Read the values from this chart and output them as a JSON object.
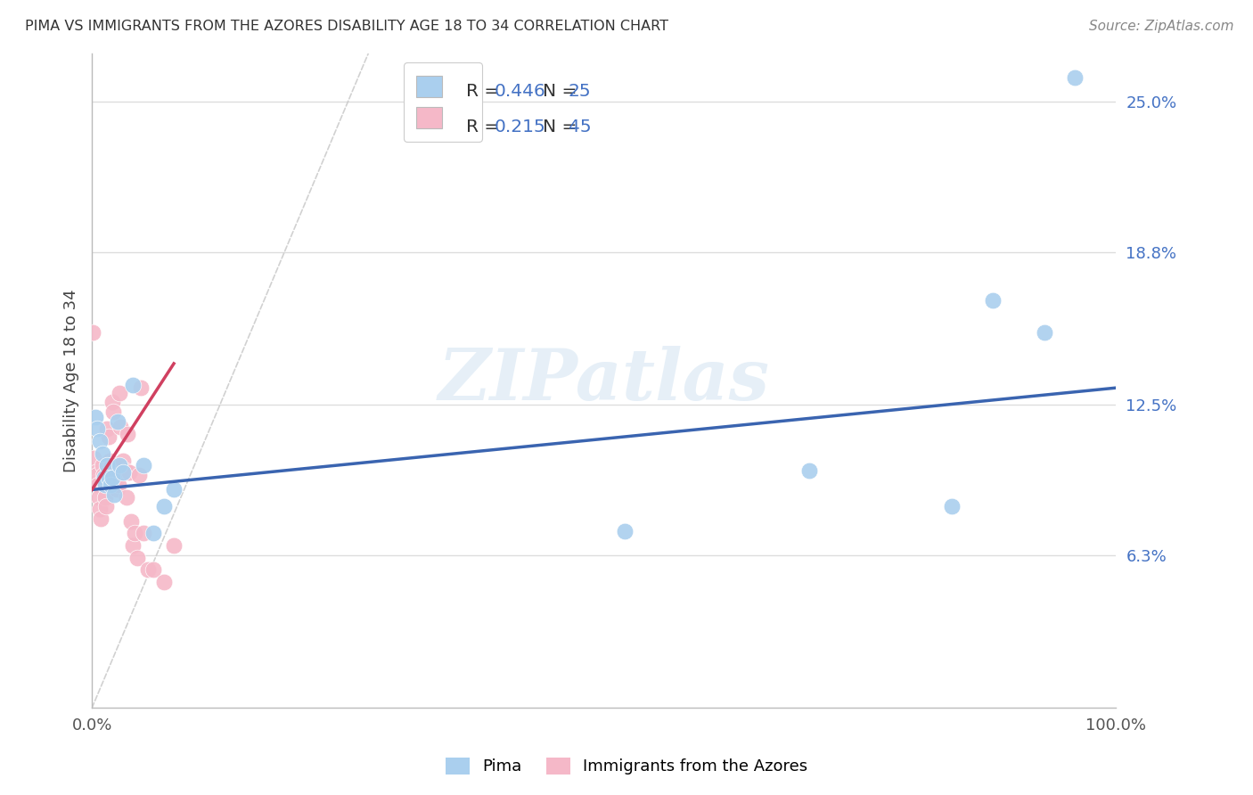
{
  "title": "PIMA VS IMMIGRANTS FROM THE AZORES DISABILITY AGE 18 TO 34 CORRELATION CHART",
  "source": "Source: ZipAtlas.com",
  "ylabel": "Disability Age 18 to 34",
  "xmin": 0.0,
  "xmax": 1.0,
  "ymin": 0.0,
  "ymax": 0.27,
  "xticks": [
    0.0,
    0.25,
    0.5,
    0.75,
    1.0
  ],
  "xticklabels": [
    "0.0%",
    "",
    "",
    "",
    "100.0%"
  ],
  "ytick_labels_right": [
    "25.0%",
    "18.8%",
    "12.5%",
    "6.3%"
  ],
  "ytick_vals_right": [
    0.25,
    0.188,
    0.125,
    0.063
  ],
  "watermark": "ZIPatlas",
  "legend_r1": "0.446",
  "legend_n1": "25",
  "legend_r2": "0.215",
  "legend_n2": "45",
  "blue_color": "#AACFEE",
  "pink_color": "#F5B8C8",
  "line_blue": "#3A64B0",
  "line_pink": "#D04060",
  "line_diag_color": "#CCCCCC",
  "background": "#FFFFFF",
  "grid_color": "#DDDDDD",
  "pima_x": [
    0.003,
    0.005,
    0.008,
    0.01,
    0.012,
    0.013,
    0.015,
    0.016,
    0.018,
    0.02,
    0.022,
    0.025,
    0.027,
    0.03,
    0.04,
    0.05,
    0.06,
    0.07,
    0.08,
    0.52,
    0.7,
    0.84,
    0.88,
    0.93,
    0.96
  ],
  "pima_y": [
    0.12,
    0.115,
    0.11,
    0.105,
    0.095,
    0.092,
    0.1,
    0.095,
    0.092,
    0.095,
    0.088,
    0.118,
    0.1,
    0.097,
    0.133,
    0.1,
    0.072,
    0.083,
    0.09,
    0.073,
    0.098,
    0.083,
    0.168,
    0.155,
    0.26
  ],
  "azores_x": [
    0.001,
    0.002,
    0.003,
    0.004,
    0.005,
    0.006,
    0.007,
    0.008,
    0.009,
    0.01,
    0.011,
    0.012,
    0.013,
    0.014,
    0.015,
    0.016,
    0.017,
    0.018,
    0.019,
    0.02,
    0.021,
    0.022,
    0.023,
    0.024,
    0.025,
    0.026,
    0.027,
    0.028,
    0.03,
    0.031,
    0.033,
    0.034,
    0.035,
    0.036,
    0.038,
    0.04,
    0.042,
    0.044,
    0.046,
    0.048,
    0.05,
    0.055,
    0.06,
    0.07,
    0.08
  ],
  "azores_y": [
    0.155,
    0.103,
    0.097,
    0.093,
    0.096,
    0.092,
    0.087,
    0.082,
    0.078,
    0.1,
    0.096,
    0.092,
    0.087,
    0.083,
    0.115,
    0.112,
    0.102,
    0.097,
    0.1,
    0.126,
    0.122,
    0.1,
    0.096,
    0.09,
    0.095,
    0.092,
    0.13,
    0.116,
    0.102,
    0.097,
    0.098,
    0.087,
    0.113,
    0.097,
    0.077,
    0.067,
    0.072,
    0.062,
    0.096,
    0.132,
    0.072,
    0.057,
    0.057,
    0.052,
    0.067
  ],
  "blue_line_x0": 0.0,
  "blue_line_y0": 0.09,
  "blue_line_x1": 1.0,
  "blue_line_y1": 0.132,
  "pink_line_x0": 0.0,
  "pink_line_y0": 0.09,
  "pink_line_x1": 0.08,
  "pink_line_y1": 0.142
}
